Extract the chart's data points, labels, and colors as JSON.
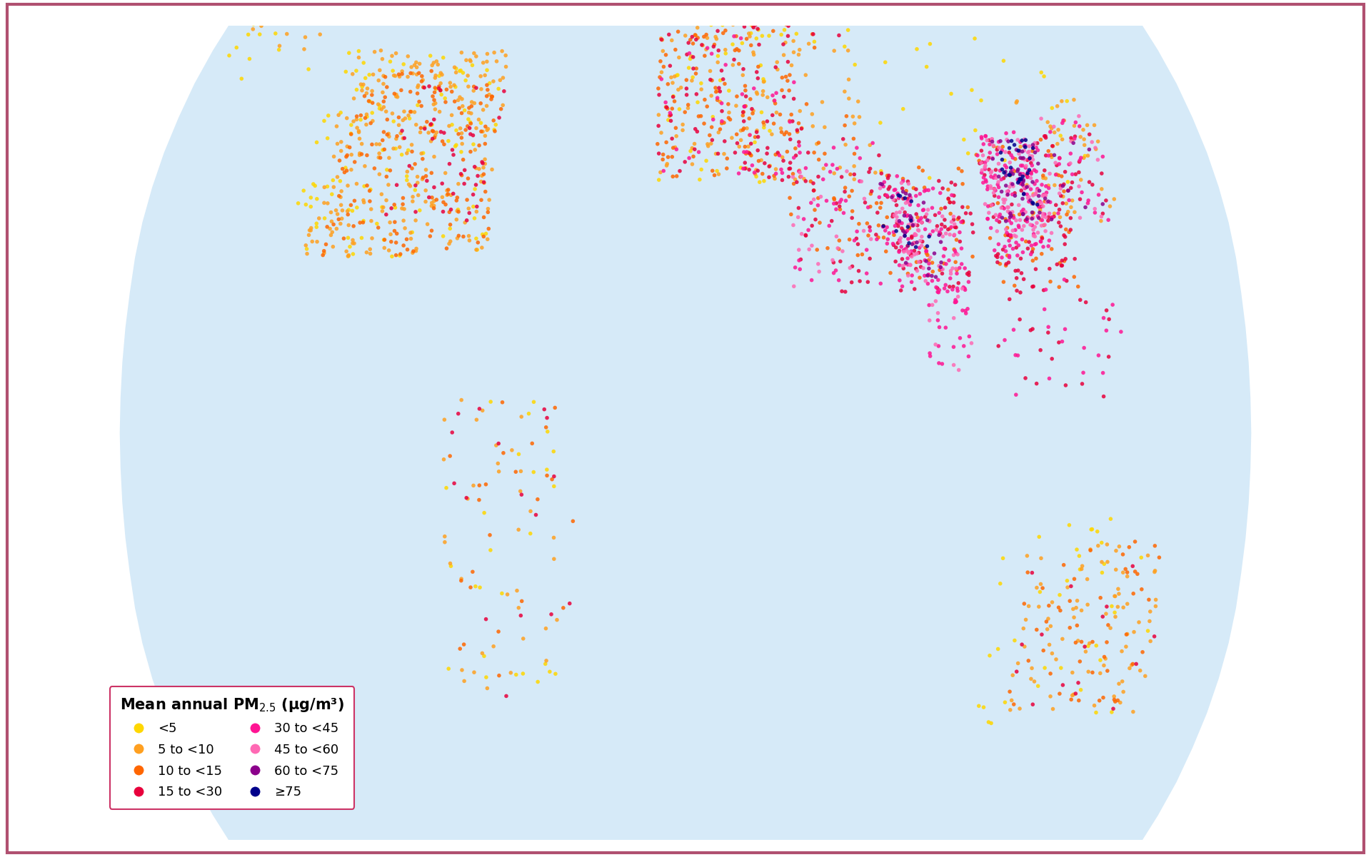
{
  "categories": [
    {
      "label": "<5",
      "color": "#FFD700"
    },
    {
      "label": "5 to <10",
      "color": "#FFA020"
    },
    {
      "label": "10 to <15",
      "color": "#FF6600"
    },
    {
      "label": "15 to <30",
      "color": "#E8003C"
    },
    {
      "label": "30 to <45",
      "color": "#FF1493"
    },
    {
      "label": "45 to <60",
      "color": "#FF69B4"
    },
    {
      "label": "60 to <75",
      "color": "#8B008B"
    },
    {
      "label": "≥75",
      "color": "#00008B"
    }
  ],
  "ocean_color": "#D6EAF8",
  "land_color": "#D0D0D0",
  "border_color": "#444444",
  "background_color": "#ffffff",
  "outer_border_color": "#B05070",
  "marker_size": 16,
  "legend_title": "Mean annual PM$_{2.5}$ (μg/m³)"
}
